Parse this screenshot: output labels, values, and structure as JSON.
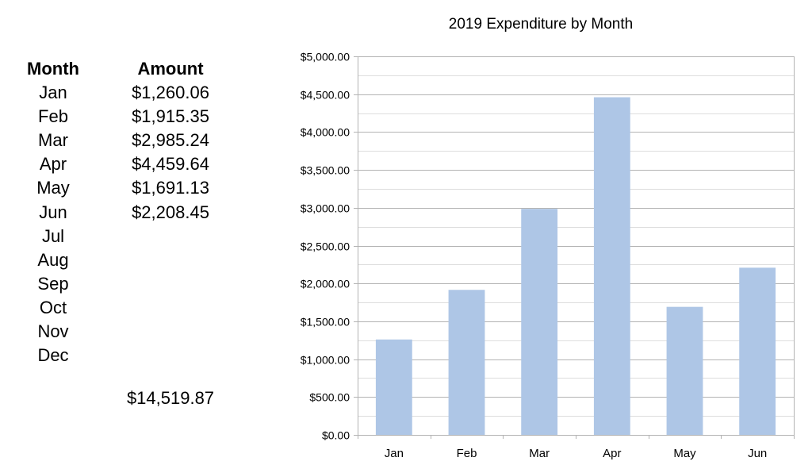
{
  "table": {
    "month_header": "Month",
    "amount_header": "Amount",
    "rows": [
      {
        "month": "Jan",
        "amount": "$1,260.06"
      },
      {
        "month": "Feb",
        "amount": "$1,915.35"
      },
      {
        "month": "Mar",
        "amount": "$2,985.24"
      },
      {
        "month": "Apr",
        "amount": "$4,459.64"
      },
      {
        "month": "May",
        "amount": "$1,691.13"
      },
      {
        "month": "Jun",
        "amount": "$2,208.45"
      },
      {
        "month": "Jul",
        "amount": ""
      },
      {
        "month": "Aug",
        "amount": ""
      },
      {
        "month": "Sep",
        "amount": ""
      },
      {
        "month": "Oct",
        "amount": ""
      },
      {
        "month": "Nov",
        "amount": ""
      },
      {
        "month": "Dec",
        "amount": ""
      }
    ],
    "total": "$14,519.87"
  },
  "chart_data": {
    "type": "bar",
    "title": "2019 Expenditure by Month",
    "categories": [
      "Jan",
      "Feb",
      "Mar",
      "Apr",
      "May",
      "Jun"
    ],
    "values": [
      1260.06,
      1915.35,
      2985.24,
      4459.64,
      1691.13,
      2208.45
    ],
    "ylim": [
      0,
      5000
    ],
    "yticks": [
      0,
      500,
      1000,
      1500,
      2000,
      2500,
      3000,
      3500,
      4000,
      4500,
      5000
    ],
    "ytick_labels": [
      "$0.00",
      "$500.00",
      "$1,000.00",
      "$1,500.00",
      "$2,000.00",
      "$2,500.00",
      "$3,000.00",
      "$3,500.00",
      "$4,000.00",
      "$4,500.00",
      "$5,000.00"
    ],
    "minor_gridlines": true,
    "legend": "none",
    "colors": {
      "bar": "#aec6e6",
      "gridline_major": "#b3b3b3",
      "gridline_minor": "#dddddd",
      "axis": "#b3b3b3"
    }
  }
}
